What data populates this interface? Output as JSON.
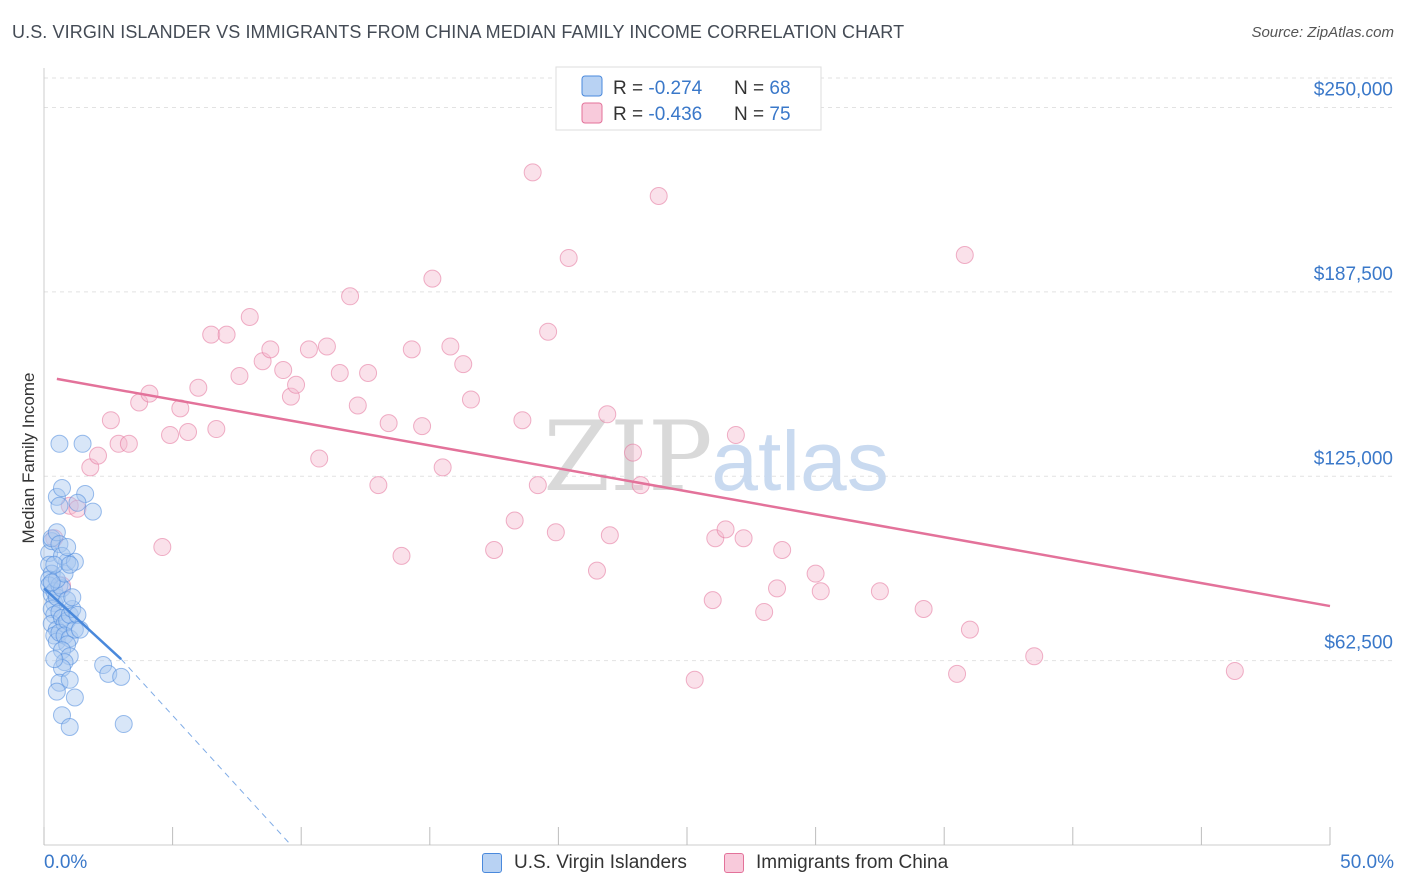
{
  "title": "U.S. VIRGIN ISLANDER VS IMMIGRANTS FROM CHINA MEDIAN FAMILY INCOME CORRELATION CHART",
  "source": "Source: ZipAtlas.com",
  "colors": {
    "blue": "#4a89dc",
    "blue_fill": "#a9c8f0",
    "pink": "#e3729a",
    "pink_fill": "#f5bcd0",
    "axis_text": "#3a78c9"
  },
  "chart_data": {
    "type": "scatter",
    "title": "U.S. VIRGIN ISLANDER VS IMMIGRANTS FROM CHINA MEDIAN FAMILY INCOME CORRELATION CHART",
    "xlabel": "",
    "ylabel": "Median Family Income",
    "xlim": [
      0,
      50
    ],
    "ylim": [
      0,
      260000
    ],
    "x_tick_labels": [
      "0.0%",
      "50.0%"
    ],
    "y_ticks": [
      62500,
      125000,
      187500,
      250000
    ],
    "y_tick_labels": [
      "$62,500",
      "$125,000",
      "$187,500",
      "$250,000"
    ],
    "legend_stats": [
      {
        "r_label": "R = ",
        "r_value": "-0.274",
        "n_label": "N = ",
        "n_value": "68"
      },
      {
        "r_label": "R = ",
        "r_value": "-0.436",
        "n_label": "N = ",
        "n_value": "75"
      }
    ],
    "series": [
      {
        "name": "U.S. Virgin Islanders",
        "color": "#4a89dc",
        "points": [
          [
            0.2,
            99000
          ],
          [
            0.3,
            103000
          ],
          [
            0.2,
            95000
          ],
          [
            0.3,
            92000
          ],
          [
            0.2,
            90000
          ],
          [
            0.2,
            88000
          ],
          [
            0.3,
            85000
          ],
          [
            0.4,
            82000
          ],
          [
            0.3,
            80000
          ],
          [
            0.4,
            78000
          ],
          [
            0.3,
            75000
          ],
          [
            0.5,
            73000
          ],
          [
            0.4,
            71000
          ],
          [
            0.5,
            69000
          ],
          [
            0.3,
            104000
          ],
          [
            0.5,
            106000
          ],
          [
            0.6,
            102000
          ],
          [
            0.4,
            86000
          ],
          [
            0.5,
            84000
          ],
          [
            0.6,
            88000
          ],
          [
            0.7,
            87000
          ],
          [
            0.5,
            90000
          ],
          [
            0.8,
            92000
          ],
          [
            0.9,
            96000
          ],
          [
            0.7,
            98000
          ],
          [
            0.6,
            79000
          ],
          [
            0.7,
            77000
          ],
          [
            0.8,
            75000
          ],
          [
            0.6,
            72000
          ],
          [
            0.9,
            76000
          ],
          [
            1.0,
            78000
          ],
          [
            1.1,
            80000
          ],
          [
            0.8,
            71000
          ],
          [
            1.0,
            70000
          ],
          [
            1.2,
            73000
          ],
          [
            0.9,
            68000
          ],
          [
            0.7,
            66000
          ],
          [
            1.0,
            64000
          ],
          [
            0.8,
            62000
          ],
          [
            0.7,
            60000
          ],
          [
            1.3,
            78000
          ],
          [
            1.4,
            73000
          ],
          [
            0.5,
            118000
          ],
          [
            0.6,
            115000
          ],
          [
            0.7,
            121000
          ],
          [
            1.6,
            119000
          ],
          [
            1.3,
            116000
          ],
          [
            1.9,
            113000
          ],
          [
            0.6,
            136000
          ],
          [
            1.5,
            136000
          ],
          [
            1.2,
            96000
          ],
          [
            0.9,
            83000
          ],
          [
            1.1,
            84000
          ],
          [
            0.4,
            63000
          ],
          [
            0.6,
            55000
          ],
          [
            1.0,
            56000
          ],
          [
            0.5,
            52000
          ],
          [
            1.2,
            50000
          ],
          [
            2.3,
            61000
          ],
          [
            2.5,
            58000
          ],
          [
            3.0,
            57000
          ],
          [
            0.7,
            44000
          ],
          [
            1.0,
            40000
          ],
          [
            3.1,
            41000
          ],
          [
            0.4,
            95000
          ],
          [
            0.3,
            89000
          ],
          [
            1.0,
            95000
          ],
          [
            0.9,
            101000
          ]
        ],
        "trend": {
          "x": [
            0,
            3.0
          ],
          "y": [
            87000,
            63000
          ]
        },
        "trend_extension": {
          "x": [
            3.0,
            9.6
          ],
          "y": [
            63000,
            0
          ]
        }
      },
      {
        "name": "Immigrants from China",
        "color": "#e3729a",
        "points": [
          [
            0.4,
            104000
          ],
          [
            0.7,
            88000
          ],
          [
            1.0,
            115000
          ],
          [
            1.3,
            114000
          ],
          [
            1.8,
            128000
          ],
          [
            2.1,
            132000
          ],
          [
            2.6,
            144000
          ],
          [
            2.9,
            136000
          ],
          [
            3.3,
            136000
          ],
          [
            3.7,
            150000
          ],
          [
            4.1,
            153000
          ],
          [
            4.6,
            101000
          ],
          [
            4.9,
            139000
          ],
          [
            5.3,
            148000
          ],
          [
            5.6,
            140000
          ],
          [
            6.0,
            155000
          ],
          [
            6.5,
            173000
          ],
          [
            6.7,
            141000
          ],
          [
            7.1,
            173000
          ],
          [
            7.6,
            159000
          ],
          [
            8.0,
            179000
          ],
          [
            8.5,
            164000
          ],
          [
            8.8,
            168000
          ],
          [
            9.3,
            161000
          ],
          [
            9.6,
            152000
          ],
          [
            9.8,
            156000
          ],
          [
            10.3,
            168000
          ],
          [
            10.7,
            131000
          ],
          [
            11.0,
            169000
          ],
          [
            11.5,
            160000
          ],
          [
            11.9,
            186000
          ],
          [
            12.2,
            149000
          ],
          [
            12.6,
            160000
          ],
          [
            13.0,
            122000
          ],
          [
            13.4,
            143000
          ],
          [
            13.9,
            98000
          ],
          [
            14.3,
            168000
          ],
          [
            14.7,
            142000
          ],
          [
            15.1,
            192000
          ],
          [
            15.5,
            128000
          ],
          [
            15.8,
            169000
          ],
          [
            16.3,
            163000
          ],
          [
            16.6,
            151000
          ],
          [
            17.5,
            100000
          ],
          [
            18.3,
            110000
          ],
          [
            18.6,
            144000
          ],
          [
            19.0,
            228000
          ],
          [
            19.2,
            122000
          ],
          [
            19.6,
            174000
          ],
          [
            19.9,
            106000
          ],
          [
            20.4,
            199000
          ],
          [
            21.5,
            93000
          ],
          [
            21.9,
            146000
          ],
          [
            22.0,
            105000
          ],
          [
            22.9,
            133000
          ],
          [
            23.2,
            122000
          ],
          [
            23.9,
            220000
          ],
          [
            25.3,
            56000
          ],
          [
            26.0,
            83000
          ],
          [
            26.1,
            104000
          ],
          [
            26.5,
            107000
          ],
          [
            26.9,
            139000
          ],
          [
            27.2,
            104000
          ],
          [
            28.0,
            79000
          ],
          [
            28.5,
            87000
          ],
          [
            28.7,
            100000
          ],
          [
            30.0,
            92000
          ],
          [
            30.2,
            86000
          ],
          [
            32.5,
            86000
          ],
          [
            34.2,
            80000
          ],
          [
            35.5,
            58000
          ],
          [
            35.8,
            200000
          ],
          [
            36.0,
            73000
          ],
          [
            38.5,
            64000
          ],
          [
            46.3,
            59000
          ]
        ],
        "trend": {
          "x": [
            0.5,
            50.0
          ],
          "y": [
            158000,
            81000
          ]
        }
      }
    ]
  }
}
